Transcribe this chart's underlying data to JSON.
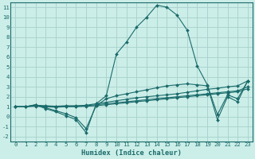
{
  "xlabel": "Humidex (Indice chaleur)",
  "bg_color": "#cceee8",
  "grid_color": "#aad4ce",
  "line_color": "#1a6b6b",
  "xlim": [
    -0.5,
    23.5
  ],
  "ylim": [
    -2.5,
    11.5
  ],
  "xticks": [
    0,
    1,
    2,
    3,
    4,
    5,
    6,
    7,
    8,
    9,
    10,
    11,
    12,
    13,
    14,
    15,
    16,
    17,
    18,
    19,
    20,
    21,
    22,
    23
  ],
  "yticks": [
    -2,
    -1,
    0,
    1,
    2,
    3,
    4,
    5,
    6,
    7,
    8,
    9,
    10,
    11
  ],
  "lines": [
    {
      "x": [
        0,
        1,
        2,
        3,
        4,
        5,
        6,
        7,
        8,
        9,
        10,
        11,
        12,
        13,
        14,
        15,
        16,
        17,
        18,
        19,
        20,
        21,
        22,
        23
      ],
      "y": [
        1.0,
        1.0,
        1.2,
        0.8,
        0.5,
        0.1,
        -0.3,
        -1.6,
        1.3,
        2.1,
        6.3,
        7.5,
        9.0,
        10.0,
        11.2,
        11.0,
        10.2,
        8.7,
        5.1,
        3.2,
        0.2,
        2.2,
        1.8,
        3.6
      ]
    },
    {
      "x": [
        0,
        1,
        2,
        3,
        4,
        5,
        6,
        7,
        8,
        9,
        10,
        11,
        12,
        13,
        14,
        15,
        16,
        17,
        18,
        19,
        20,
        21,
        22,
        23
      ],
      "y": [
        1.0,
        1.0,
        1.15,
        1.1,
        1.05,
        1.1,
        1.1,
        1.15,
        1.3,
        1.45,
        1.6,
        1.75,
        1.9,
        2.0,
        2.1,
        2.2,
        2.3,
        2.45,
        2.6,
        2.75,
        2.85,
        3.0,
        3.1,
        3.6
      ]
    },
    {
      "x": [
        0,
        1,
        2,
        3,
        4,
        5,
        6,
        7,
        8,
        9,
        10,
        11,
        12,
        13,
        14,
        15,
        16,
        17,
        18,
        19,
        20,
        21,
        22,
        23
      ],
      "y": [
        1.0,
        1.0,
        1.1,
        1.05,
        1.0,
        1.05,
        1.05,
        1.1,
        1.2,
        1.3,
        1.4,
        1.5,
        1.6,
        1.7,
        1.8,
        1.9,
        2.0,
        2.1,
        2.2,
        2.3,
        2.4,
        2.5,
        2.6,
        3.0
      ]
    },
    {
      "x": [
        0,
        1,
        2,
        3,
        4,
        5,
        6,
        7,
        8,
        9,
        10,
        11,
        12,
        13,
        14,
        15,
        16,
        17,
        18,
        19,
        20,
        21,
        22,
        23
      ],
      "y": [
        1.0,
        1.0,
        1.05,
        1.0,
        0.95,
        1.0,
        1.0,
        1.05,
        1.1,
        1.2,
        1.3,
        1.4,
        1.5,
        1.6,
        1.7,
        1.8,
        1.9,
        2.0,
        2.1,
        2.2,
        2.3,
        2.4,
        2.5,
        2.8
      ]
    },
    {
      "x": [
        0,
        1,
        2,
        3,
        4,
        5,
        6,
        7,
        8,
        9,
        10,
        11,
        12,
        13,
        14,
        15,
        16,
        17,
        18,
        19,
        20,
        21,
        22,
        23
      ],
      "y": [
        1.0,
        1.0,
        1.2,
        0.9,
        0.6,
        0.3,
        -0.1,
        -1.2,
        1.1,
        1.8,
        2.1,
        2.3,
        2.5,
        2.7,
        2.9,
        3.1,
        3.2,
        3.3,
        3.2,
        3.1,
        -0.3,
        2.0,
        1.5,
        3.6
      ]
    }
  ],
  "markersize": 2.0,
  "linewidth": 0.8,
  "tick_fontsize": 5.2,
  "xlabel_fontsize": 6.2
}
